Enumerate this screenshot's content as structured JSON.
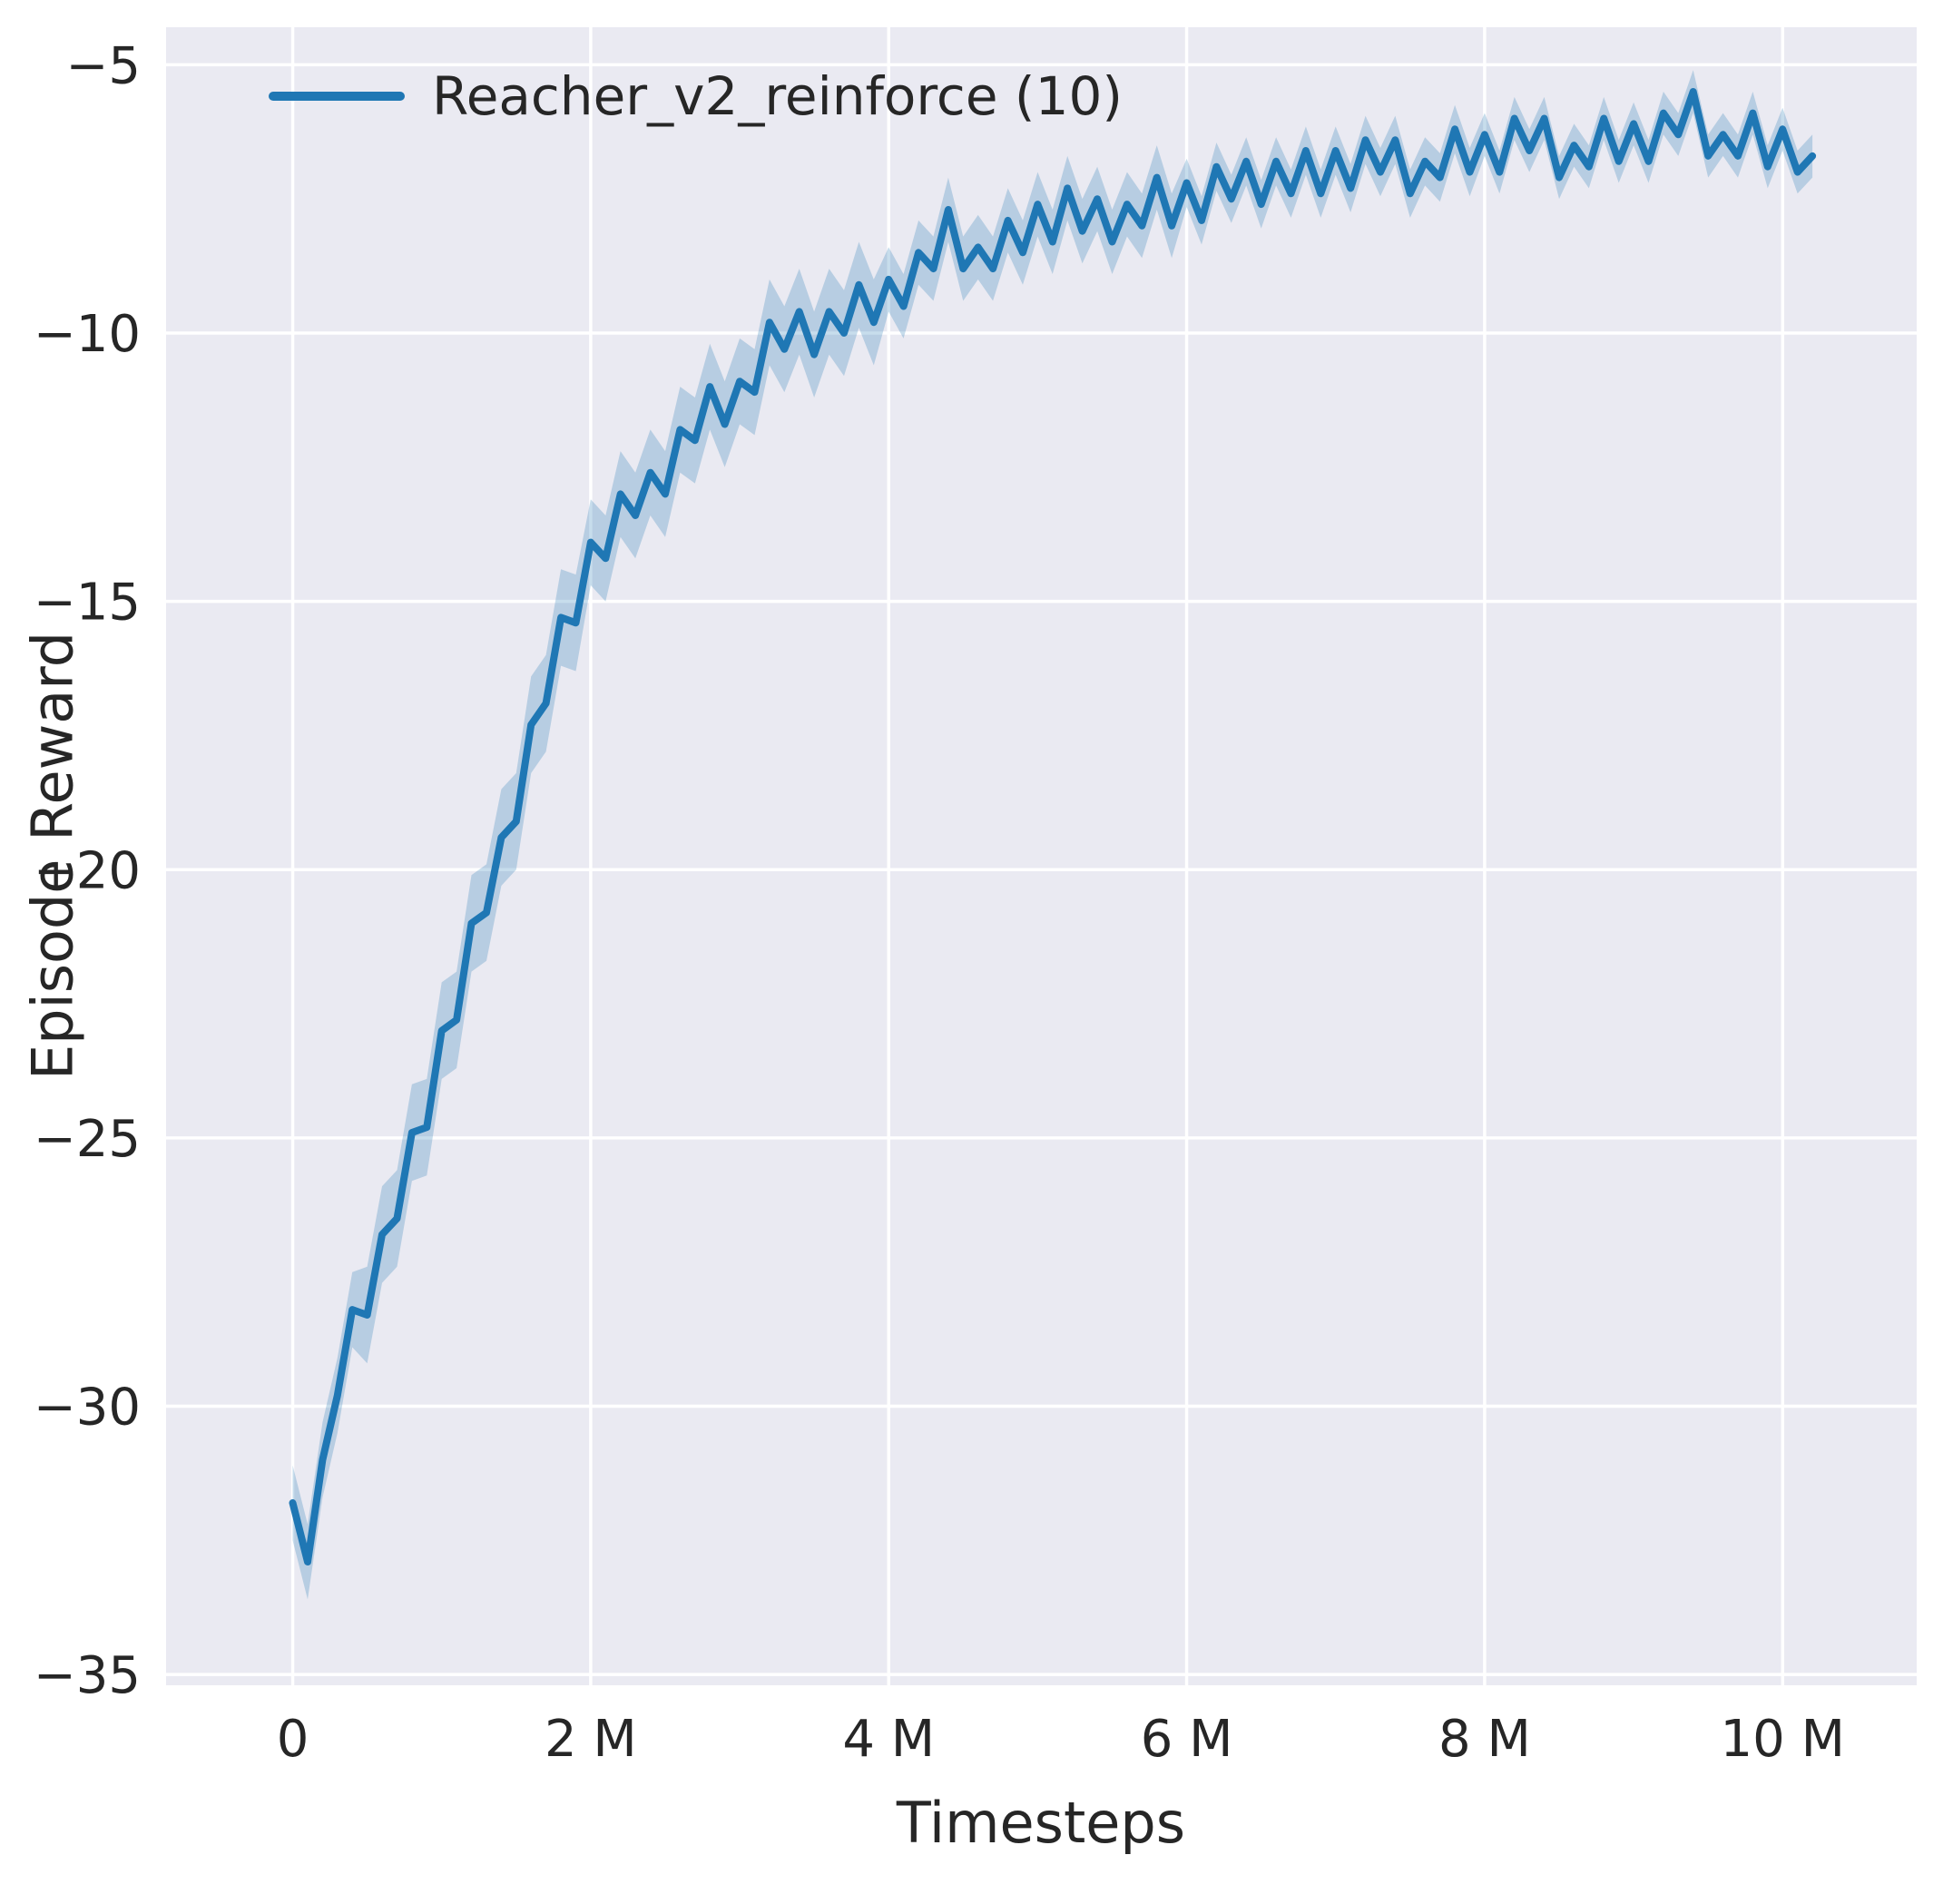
{
  "figure": {
    "background": "#ffffff",
    "plot_background": "#eaeaf2",
    "grid_color": "#ffffff",
    "text_color": "#262626"
  },
  "chart_data": {
    "type": "line",
    "title": "",
    "xlabel": "Timesteps",
    "ylabel": "Episode Reward",
    "x_unit": "millions",
    "xlim": [
      -0.85,
      10.9
    ],
    "ylim": [
      -35.2,
      -4.3
    ],
    "xticks": [
      0,
      2,
      4,
      6,
      8,
      10
    ],
    "xtick_labels": [
      "0",
      "2 M",
      "4 M",
      "6 M",
      "8 M",
      "10 M"
    ],
    "yticks": [
      -5,
      -10,
      -15,
      -20,
      -25,
      -30,
      -35
    ],
    "ytick_labels": [
      "−5",
      "−10",
      "−15",
      "−20",
      "−25",
      "−30",
      "−35"
    ],
    "grid": true,
    "legend": {
      "position": "upper left",
      "entries": [
        {
          "label": "Reacher_v2_reinforce (10)",
          "color": "#1f77b4"
        }
      ]
    },
    "series": [
      {
        "name": "Reacher_v2_reinforce (10)",
        "color": "#1f77b4",
        "band_color": "rgba(31,119,180,0.25)",
        "x": [
          0,
          0.1,
          0.2,
          0.3,
          0.4,
          0.5,
          0.6,
          0.7,
          0.8,
          0.9,
          1,
          1.1,
          1.2,
          1.3,
          1.4,
          1.5,
          1.6,
          1.7,
          1.8,
          1.9,
          2,
          2.1,
          2.2,
          2.3,
          2.4,
          2.5,
          2.6,
          2.7,
          2.8,
          2.9,
          3,
          3.1,
          3.2,
          3.3,
          3.4,
          3.5,
          3.6,
          3.7,
          3.8,
          3.9,
          4,
          4.1,
          4.2,
          4.3,
          4.4,
          4.5,
          4.6,
          4.7,
          4.8,
          4.9,
          5,
          5.1,
          5.2,
          5.3,
          5.4,
          5.5,
          5.6,
          5.7,
          5.8,
          5.9,
          6,
          6.1,
          6.2,
          6.3,
          6.4,
          6.5,
          6.6,
          6.7,
          6.8,
          6.9,
          7,
          7.1,
          7.2,
          7.3,
          7.4,
          7.5,
          7.6,
          7.7,
          7.8,
          7.9,
          8,
          8.1,
          8.2,
          8.3,
          8.4,
          8.5,
          8.6,
          8.7,
          8.8,
          8.9,
          9,
          9.1,
          9.2,
          9.3,
          9.4,
          9.5,
          9.6,
          9.7,
          9.8,
          9.9,
          10,
          10.1,
          10.2
        ],
        "y": [
          -31.8,
          -32.9,
          -31.0,
          -29.8,
          -28.2,
          -28.3,
          -26.8,
          -26.5,
          -24.9,
          -24.8,
          -23.0,
          -22.8,
          -21.0,
          -20.8,
          -19.4,
          -19.1,
          -17.3,
          -16.9,
          -15.3,
          -15.4,
          -13.9,
          -14.2,
          -13.0,
          -13.4,
          -12.6,
          -13.0,
          -11.8,
          -12.0,
          -11.0,
          -11.7,
          -10.9,
          -11.1,
          -9.8,
          -10.3,
          -9.6,
          -10.4,
          -9.6,
          -10.0,
          -9.1,
          -9.8,
          -9.0,
          -9.5,
          -8.5,
          -8.8,
          -7.7,
          -8.8,
          -8.4,
          -8.8,
          -7.9,
          -8.5,
          -7.6,
          -8.3,
          -7.3,
          -8.1,
          -7.5,
          -8.3,
          -7.6,
          -8.0,
          -7.1,
          -8.0,
          -7.2,
          -7.9,
          -6.9,
          -7.5,
          -6.8,
          -7.6,
          -6.8,
          -7.4,
          -6.6,
          -7.4,
          -6.6,
          -7.3,
          -6.4,
          -7.0,
          -6.4,
          -7.4,
          -6.8,
          -7.1,
          -6.2,
          -7.0,
          -6.3,
          -7.0,
          -6.0,
          -6.6,
          -6.0,
          -7.1,
          -6.5,
          -6.9,
          -6.0,
          -6.8,
          -6.1,
          -6.8,
          -5.9,
          -6.3,
          -5.5,
          -6.7,
          -6.3,
          -6.7,
          -5.9,
          -6.9,
          -6.2,
          -7.0,
          -6.7
        ],
        "band_halfwidth": [
          0.7,
          0.7,
          0.7,
          0.7,
          0.7,
          0.9,
          0.9,
          0.9,
          0.9,
          0.9,
          0.9,
          0.9,
          0.9,
          0.9,
          0.9,
          0.9,
          0.9,
          0.9,
          0.9,
          0.9,
          0.8,
          0.8,
          0.8,
          0.8,
          0.8,
          0.8,
          0.8,
          0.8,
          0.8,
          0.8,
          0.8,
          0.8,
          0.8,
          0.8,
          0.8,
          0.8,
          0.8,
          0.8,
          0.8,
          0.8,
          0.6,
          0.6,
          0.6,
          0.6,
          0.6,
          0.6,
          0.6,
          0.6,
          0.6,
          0.6,
          0.6,
          0.6,
          0.6,
          0.6,
          0.6,
          0.6,
          0.6,
          0.6,
          0.6,
          0.6,
          0.45,
          0.45,
          0.45,
          0.45,
          0.45,
          0.45,
          0.45,
          0.45,
          0.45,
          0.45,
          0.45,
          0.45,
          0.45,
          0.45,
          0.45,
          0.45,
          0.45,
          0.45,
          0.45,
          0.45,
          0.4,
          0.4,
          0.4,
          0.4,
          0.4,
          0.4,
          0.4,
          0.4,
          0.4,
          0.4,
          0.4,
          0.4,
          0.4,
          0.4,
          0.4,
          0.4,
          0.4,
          0.4,
          0.4,
          0.4,
          0.4,
          0.4,
          0.4
        ]
      }
    ]
  }
}
